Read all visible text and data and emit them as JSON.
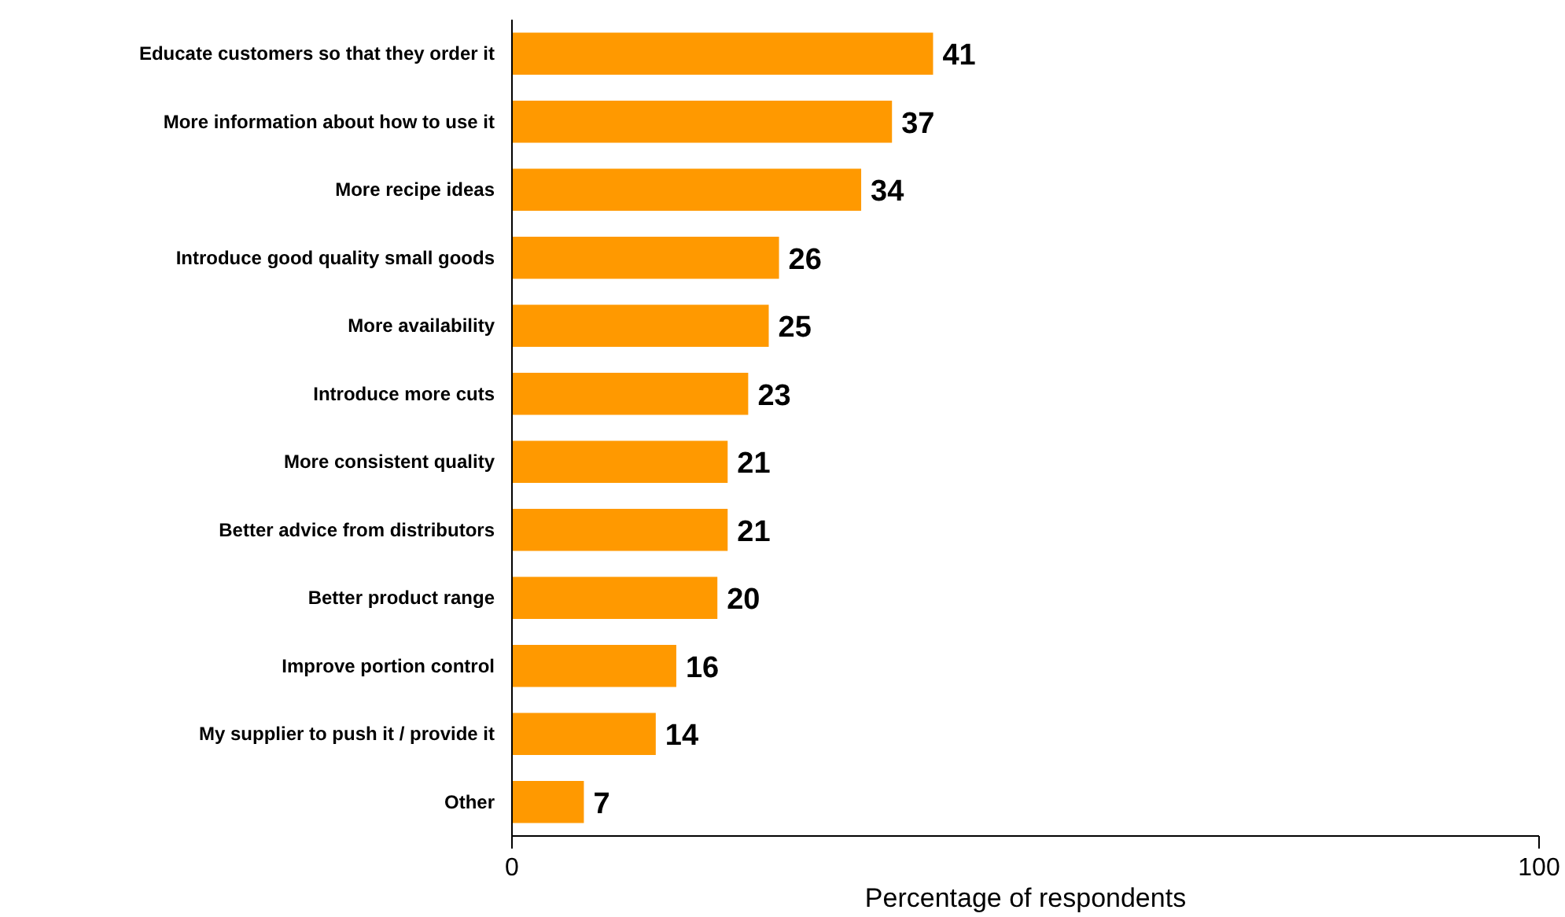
{
  "chart_data": {
    "type": "bar",
    "orientation": "horizontal",
    "xlabel": "Percentage of respondents",
    "categories": [
      "Educate customers so that they order it",
      "More information about how to use it",
      "More recipe ideas",
      "Introduce good quality small goods",
      "More availability",
      "Introduce more cuts",
      "More consistent quality",
      "Better advice from distributors",
      "Better product range",
      "Improve portion control",
      "My supplier to push it / provide it",
      "Other"
    ],
    "values": [
      41,
      37,
      34,
      26,
      25,
      23,
      21,
      21,
      20,
      16,
      14,
      7
    ],
    "color": "#ff9900",
    "xlim": [
      0,
      100
    ],
    "xticks": [
      0,
      100
    ],
    "data_labels": true,
    "grid": false
  }
}
